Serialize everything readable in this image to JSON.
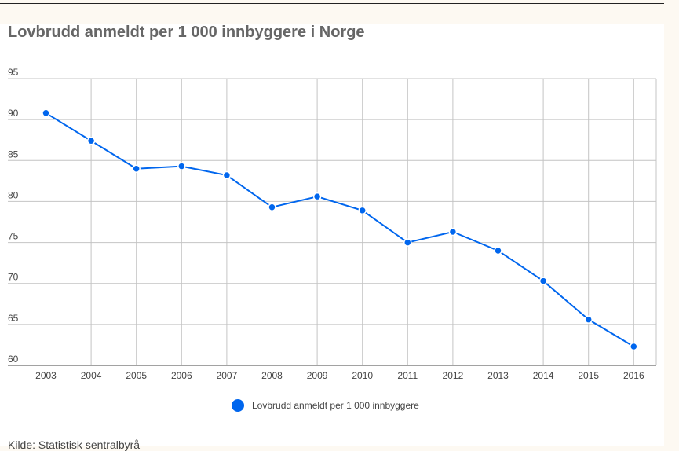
{
  "chart_data": {
    "type": "line",
    "title": "Lovbrudd anmeldt per 1 000 innbyggere i Norge",
    "x": [
      2003,
      2004,
      2005,
      2006,
      2007,
      2008,
      2009,
      2010,
      2011,
      2012,
      2013,
      2014,
      2015,
      2016
    ],
    "series": [
      {
        "name": "Lovbrudd anmeldt per 1 000 innbyggere",
        "values": [
          90.8,
          87.4,
          84.0,
          84.3,
          83.2,
          79.3,
          80.6,
          78.9,
          75.0,
          76.3,
          74.0,
          70.3,
          65.6,
          62.3
        ],
        "color": "#0066ee"
      }
    ],
    "ylim": [
      60,
      95
    ],
    "yticks": [
      60,
      65,
      70,
      75,
      80,
      85,
      90,
      95
    ],
    "grid": true,
    "legend_position": "bottom",
    "source": "Kilde: Statistisk sentralbyrå"
  }
}
